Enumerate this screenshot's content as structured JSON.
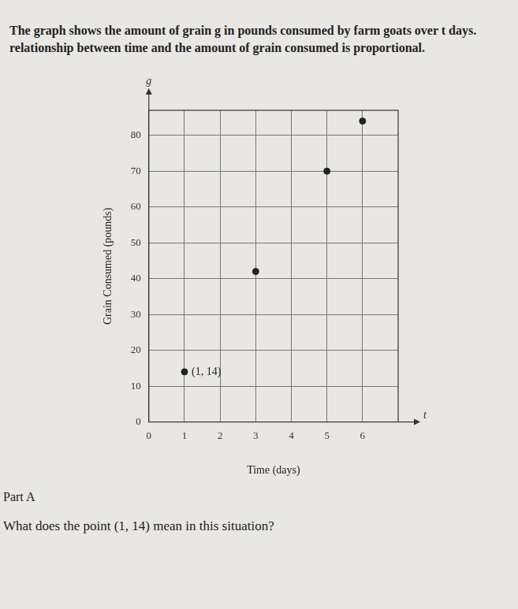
{
  "intro": [
    "The graph shows the amount of grain g in pounds consumed by farm goats over t days.",
    "relationship between time and the amount of grain consumed is proportional."
  ],
  "part": "Part A",
  "question": "What does the point (1, 14) mean in this situation?",
  "chart_data": {
    "type": "scatter",
    "x_label": "Time (days)",
    "y_label": "Grain Consumed (pounds)",
    "x_symbol": "t",
    "y_symbol": "g",
    "x": [
      1,
      3,
      5,
      6
    ],
    "values": [
      14,
      42,
      70,
      84
    ],
    "color": "#222222",
    "xlim": [
      0,
      7
    ],
    "xticks": [
      0,
      1,
      2,
      3,
      4,
      5,
      6
    ],
    "ylim": [
      0,
      87
    ],
    "yticks": [
      0,
      10,
      20,
      30,
      40,
      50,
      60,
      70,
      80
    ],
    "grid": true,
    "annotations": [
      {
        "x": 1,
        "y": 14,
        "text": "(1, 14)"
      }
    ]
  }
}
